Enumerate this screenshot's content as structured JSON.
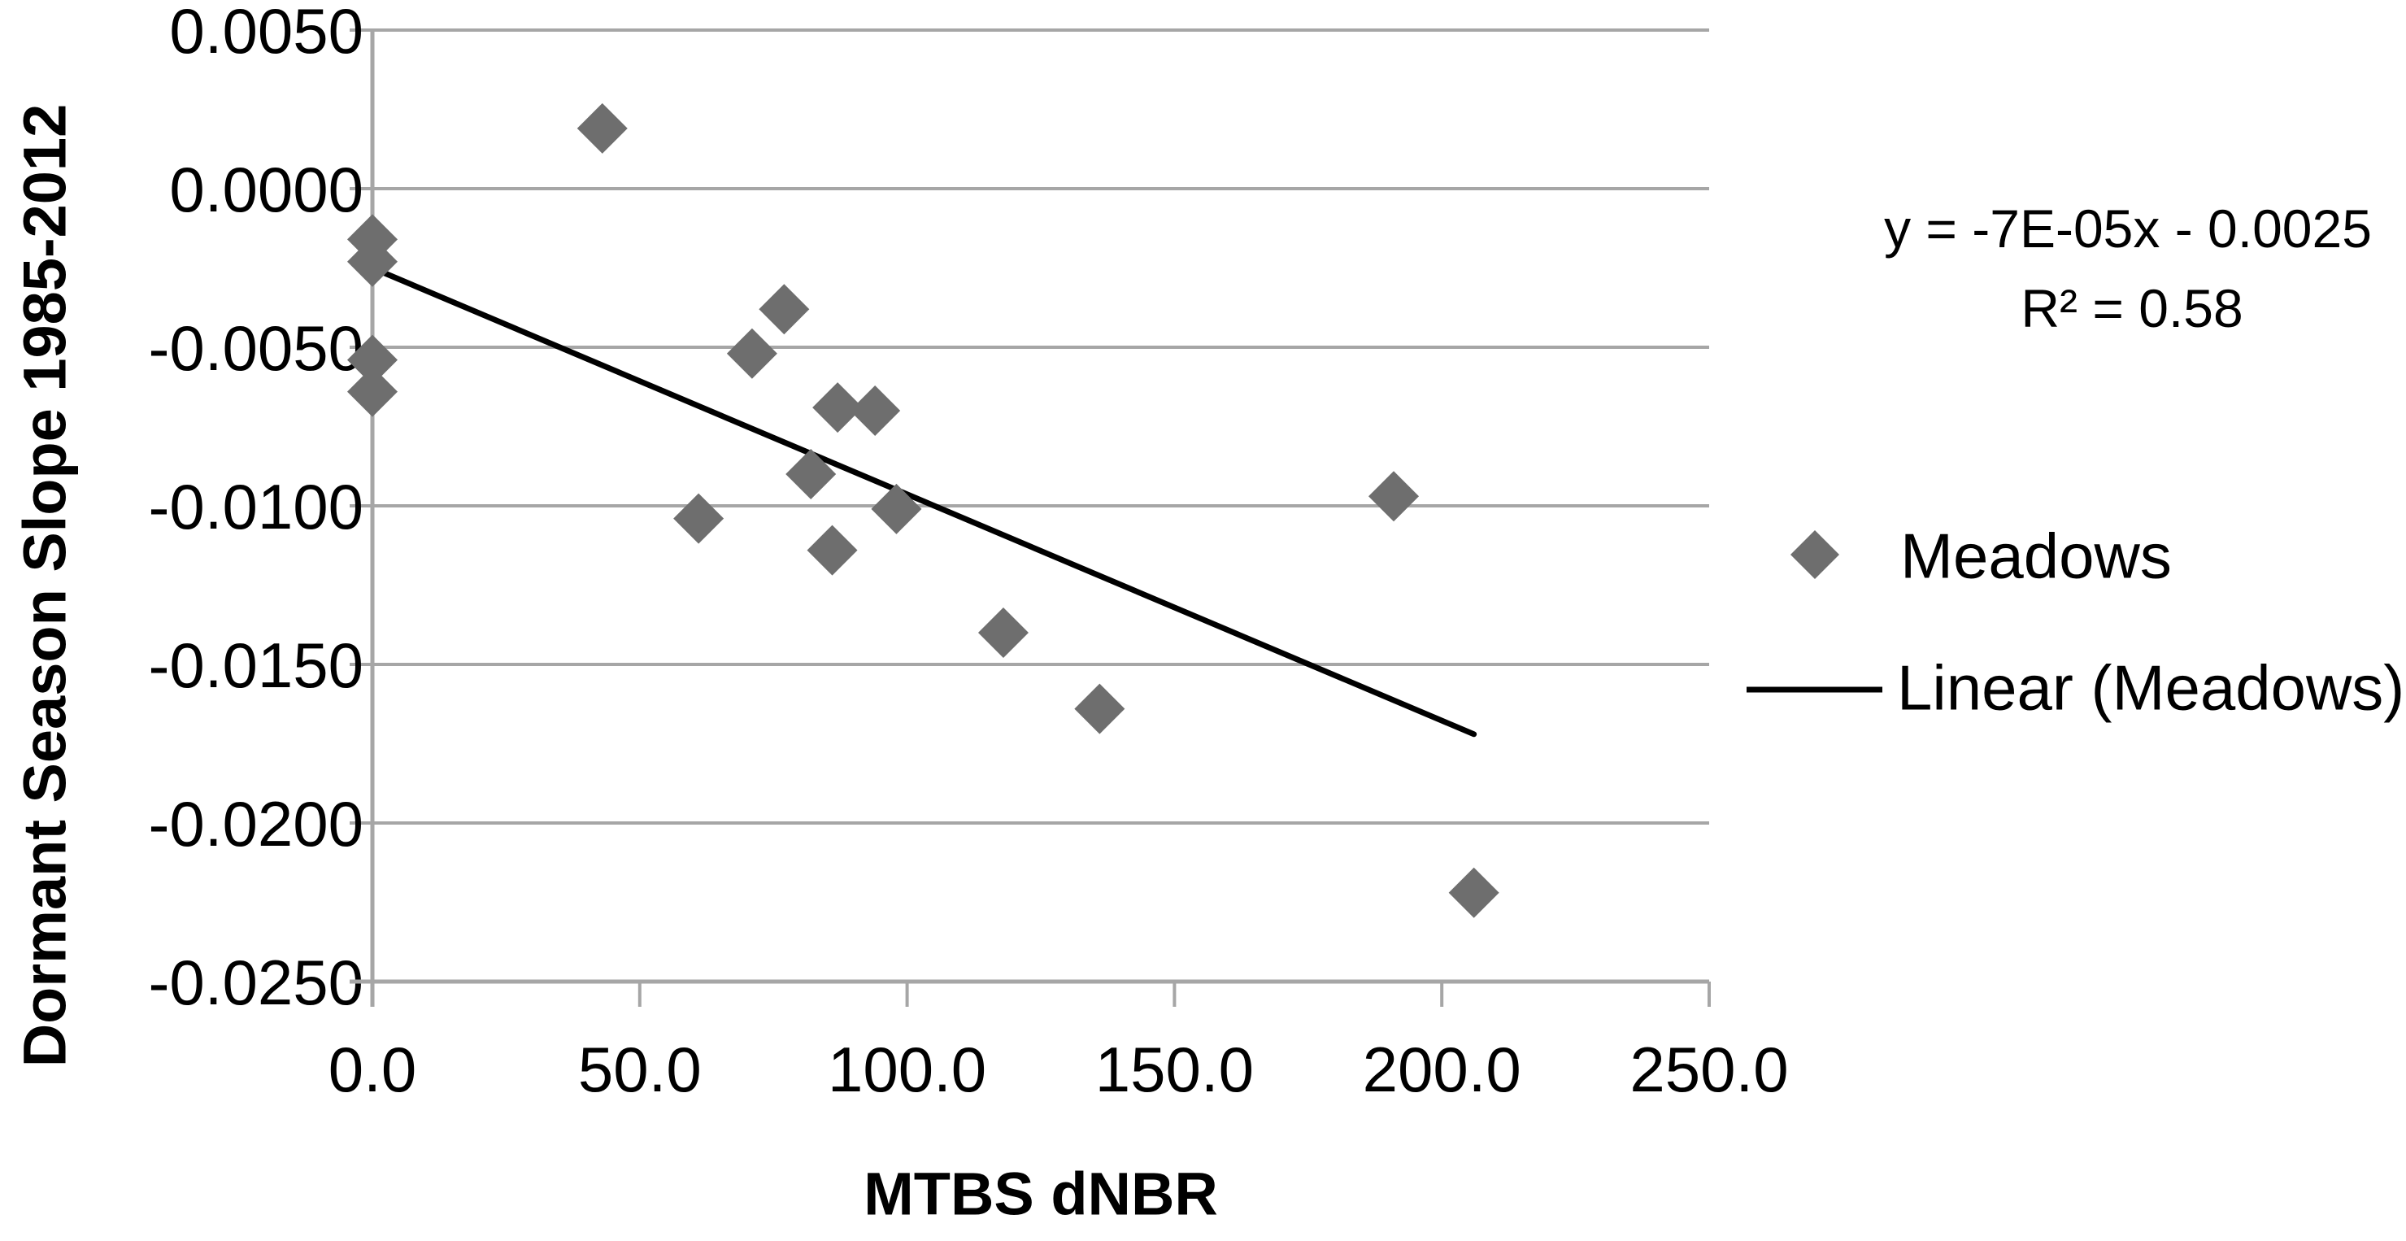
{
  "chart_data": {
    "type": "scatter",
    "title": "",
    "xlabel": "MTBS dNBR",
    "ylabel": "Dormant Season Slope 1985-2012",
    "xlim": [
      0,
      250
    ],
    "ylim": [
      -0.025,
      0.005
    ],
    "grid": "horizontal",
    "x_ticks": [
      {
        "value": 0,
        "label": "0.0"
      },
      {
        "value": 50,
        "label": "50.0"
      },
      {
        "value": 100,
        "label": "100.0"
      },
      {
        "value": 150,
        "label": "150.0"
      },
      {
        "value": 200,
        "label": "200.0"
      },
      {
        "value": 250,
        "label": "250.0"
      }
    ],
    "y_ticks": [
      {
        "value": 0.005,
        "label": "0.0050"
      },
      {
        "value": 0.0,
        "label": "0.0000"
      },
      {
        "value": -0.005,
        "label": "-0.0050"
      },
      {
        "value": -0.01,
        "label": "-0.0100"
      },
      {
        "value": -0.015,
        "label": "-0.0150"
      },
      {
        "value": -0.02,
        "label": "-0.0200"
      },
      {
        "value": -0.025,
        "label": "-0.0250"
      }
    ],
    "series": [
      {
        "name": "Meadows",
        "marker": "diamond",
        "color": "#6e6e6e",
        "points": [
          [
            0,
            -0.0016
          ],
          [
            0,
            -0.0023
          ],
          [
            0,
            -0.0054
          ],
          [
            0,
            -0.0064
          ],
          [
            43,
            0.0019
          ],
          [
            61,
            -0.0104
          ],
          [
            71,
            -0.0052
          ],
          [
            77,
            -0.0038
          ],
          [
            82,
            -0.009
          ],
          [
            86,
            -0.0114
          ],
          [
            87,
            -0.0069
          ],
          [
            94,
            -0.007
          ],
          [
            98,
            -0.0101
          ],
          [
            118,
            -0.014
          ],
          [
            136,
            -0.0164
          ],
          [
            191,
            -0.0097
          ],
          [
            206,
            -0.0222
          ]
        ]
      }
    ],
    "trendline": {
      "name": "Linear (Meadows)",
      "color": "#000000",
      "x1": 0,
      "y1": -0.0025,
      "x2": 206,
      "y2": -0.0172
    },
    "legend_position": "right"
  },
  "annotation": {
    "equation": "y = -7E-05x - 0.0025",
    "r_squared": "R² = 0.58"
  },
  "legend": {
    "meadows_label": "Meadows",
    "linear_label": "Linear (Meadows)"
  },
  "axis_titles": {
    "y": "Dormant Season Slope 1985-2012",
    "x": "MTBS dNBR"
  },
  "colors": {
    "marker": "#6e6e6e",
    "gridline": "#a6a6a6",
    "axis": "#a6a6a6",
    "trendline": "#000000",
    "text": "#000000",
    "background": "#ffffff"
  }
}
